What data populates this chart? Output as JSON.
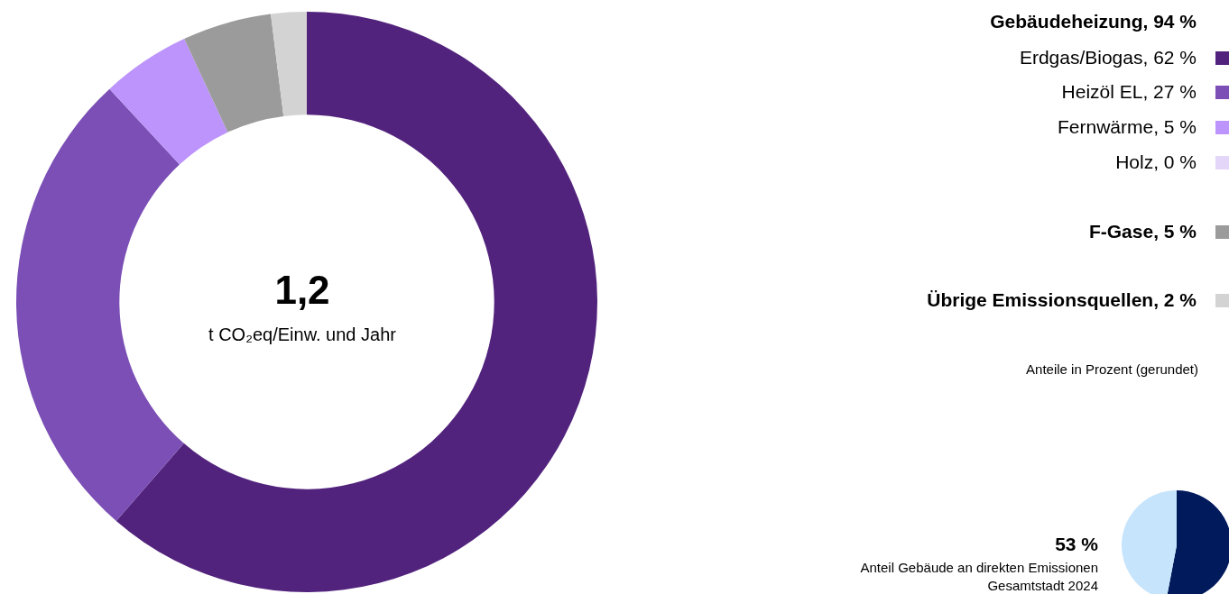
{
  "chart_data": [
    {
      "type": "donut",
      "legend_title": "Gebäudeheizung, 94 %",
      "legend": "right",
      "categories": [
        "Erdgas/Biogas, 62 %",
        "Heizöl EL, 27 %",
        "Fernwärme, 5 %",
        "Holz, 0 %",
        "F-Gase, 5 %",
        "Übrige Emissionsquellen, 2 %"
      ],
      "values": [
        62,
        27,
        5,
        0,
        5,
        2
      ],
      "colors": [
        "#52237d",
        "#7b4fb5",
        "#bc94fb",
        "#e3d6f8",
        "#9b9b9b",
        "#d3d3d3"
      ],
      "annotations": [
        "1,2",
        "t CO₂eq/Einw. und Jahr",
        "Anteile in Prozent (gerundet)"
      ]
    },
    {
      "type": "pie",
      "title": "Anteil Gebäude an direkten Emissionen Gesamtstadt 2024",
      "categories": [
        null,
        null
      ],
      "values": [
        53,
        47
      ],
      "colors": [
        "#001a5c",
        "#c6e4fb"
      ],
      "annotations": [
        "53 %"
      ]
    }
  ]
}
